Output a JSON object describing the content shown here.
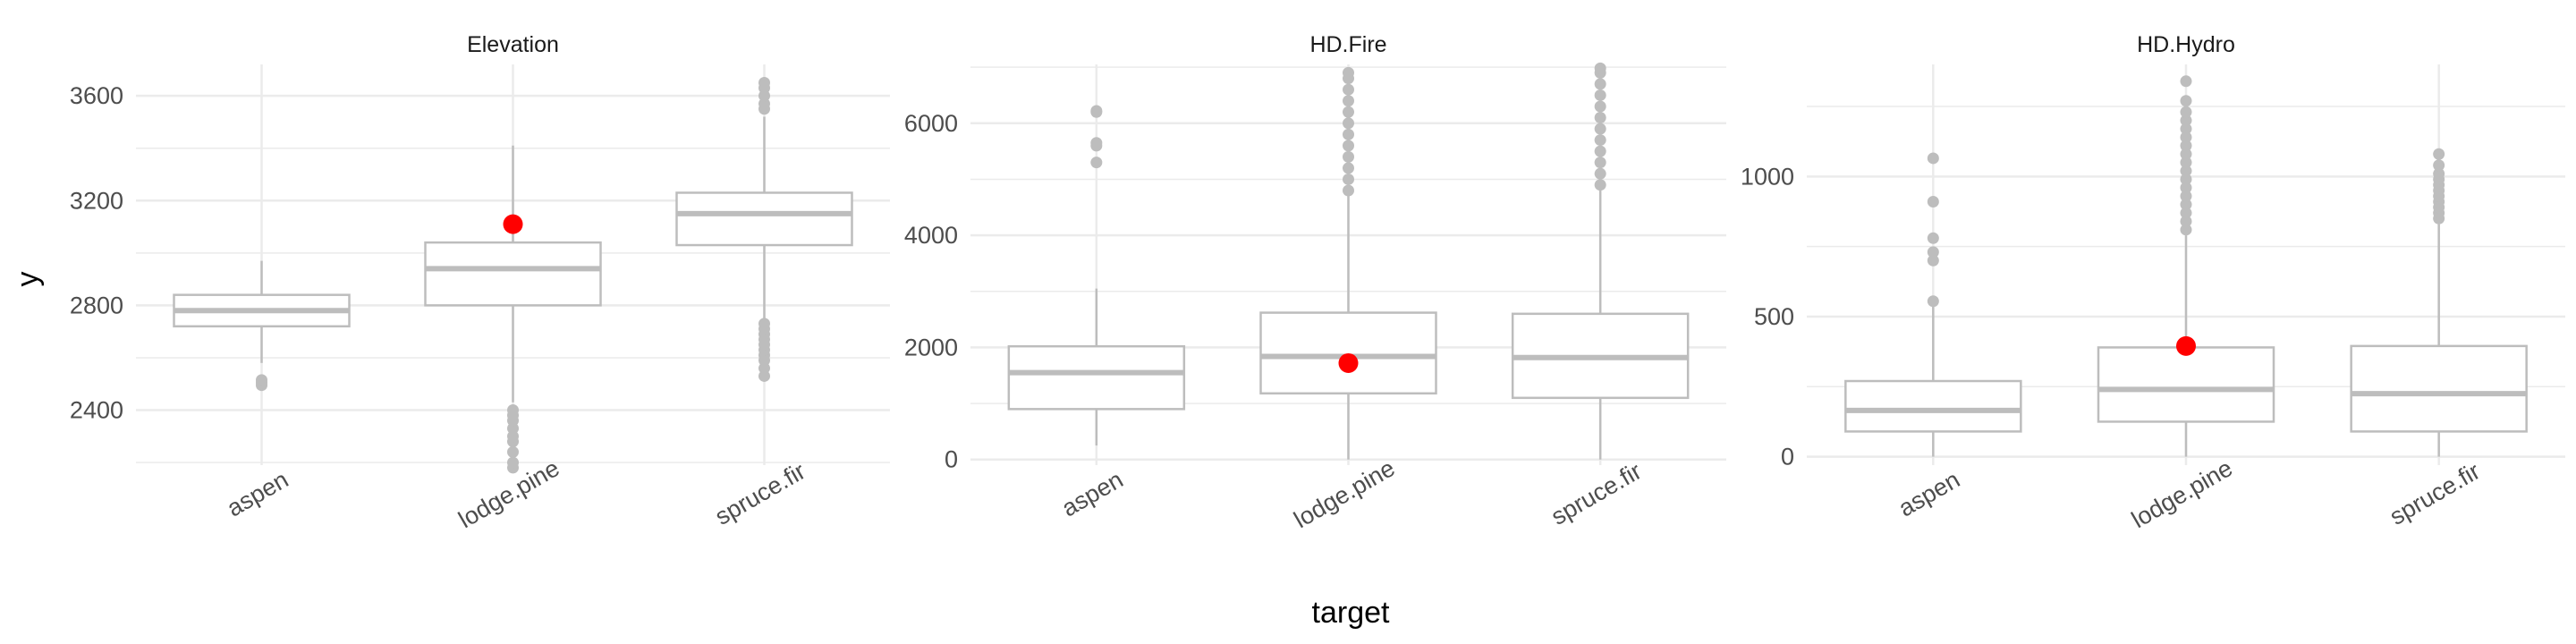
{
  "chart_data": {
    "type": "boxplot",
    "xlabel": "target",
    "ylabel": "y",
    "categories": [
      "aspen",
      "lodge.pine",
      "spruce.fir"
    ],
    "colors": {
      "box": "#bdbdbd",
      "outlier": "#bdbdbd",
      "highlight": "#ff0000",
      "grid": "#ebebeb"
    },
    "legend": "none",
    "grid": true,
    "panels": [
      {
        "title": "Elevation",
        "ylim": [
          2190,
          3720
        ],
        "yticks": [
          2400,
          2800,
          3200,
          3600
        ],
        "boxes": [
          {
            "category": "aspen",
            "q1": 2720,
            "median": 2780,
            "q3": 2840,
            "whisker_low": 2580,
            "whisker_high": 2970,
            "outliers": [
              2495,
              2505,
              2515
            ]
          },
          {
            "category": "lodge.pine",
            "q1": 2800,
            "median": 2940,
            "q3": 3040,
            "whisker_low": 2430,
            "whisker_high": 3410,
            "outliers": [
              2180,
              2200,
              2240,
              2280,
              2300,
              2330,
              2360,
              2380,
              2400
            ]
          },
          {
            "category": "spruce.fir",
            "q1": 3030,
            "median": 3150,
            "q3": 3230,
            "whisker_low": 2740,
            "whisker_high": 3520,
            "outliers": [
              2530,
              2560,
              2590,
              2610,
              2630,
              2650,
              2670,
              2690,
              2710,
              2730,
              3550,
              3570,
              3600,
              3630,
              3650
            ]
          }
        ],
        "highlight": {
          "category": "lodge.pine",
          "value": 3110
        }
      },
      {
        "title": "HD.Fire",
        "ylim": [
          -100,
          7050
        ],
        "yticks": [
          0,
          2000,
          4000,
          6000
        ],
        "boxes": [
          {
            "category": "aspen",
            "q1": 900,
            "median": 1550,
            "q3": 2020,
            "whisker_low": 250,
            "whisker_high": 3050,
            "outliers": [
              5300,
              5600,
              5650,
              6200,
              6220
            ]
          },
          {
            "category": "lodge.pine",
            "q1": 1180,
            "median": 1840,
            "q3": 2620,
            "whisker_low": 0,
            "whisker_high": 4750,
            "outliers": [
              4800,
              5000,
              5200,
              5400,
              5600,
              5800,
              6000,
              6200,
              6400,
              6600,
              6800,
              6900
            ]
          },
          {
            "category": "spruce.fir",
            "q1": 1100,
            "median": 1820,
            "q3": 2600,
            "whisker_low": 0,
            "whisker_high": 4850,
            "outliers": [
              4900,
              5100,
              5300,
              5500,
              5700,
              5900,
              6100,
              6300,
              6500,
              6700,
              6900,
              6980
            ]
          }
        ],
        "highlight": {
          "category": "lodge.pine",
          "value": 1720
        }
      },
      {
        "title": "HD.Hydro",
        "ylim": [
          -30,
          1400
        ],
        "yticks": [
          0,
          500,
          1000
        ],
        "boxes": [
          {
            "category": "aspen",
            "q1": 90,
            "median": 165,
            "q3": 270,
            "whisker_low": 0,
            "whisker_high": 540,
            "outliers": [
              555,
              700,
              730,
              780,
              910,
              1065
            ]
          },
          {
            "category": "lodge.pine",
            "q1": 125,
            "median": 240,
            "q3": 390,
            "whisker_low": 0,
            "whisker_high": 790,
            "outliers": [
              810,
              840,
              870,
              900,
              930,
              960,
              990,
              1020,
              1050,
              1080,
              1110,
              1140,
              1170,
              1200,
              1230,
              1270,
              1340
            ]
          },
          {
            "category": "spruce.fir",
            "q1": 90,
            "median": 225,
            "q3": 395,
            "whisker_low": 0,
            "whisker_high": 830,
            "outliers": [
              850,
              870,
              890,
              910,
              930,
              950,
              970,
              990,
              1010,
              1040,
              1080
            ]
          }
        ],
        "highlight": {
          "category": "lodge.pine",
          "value": 395
        }
      }
    ]
  }
}
